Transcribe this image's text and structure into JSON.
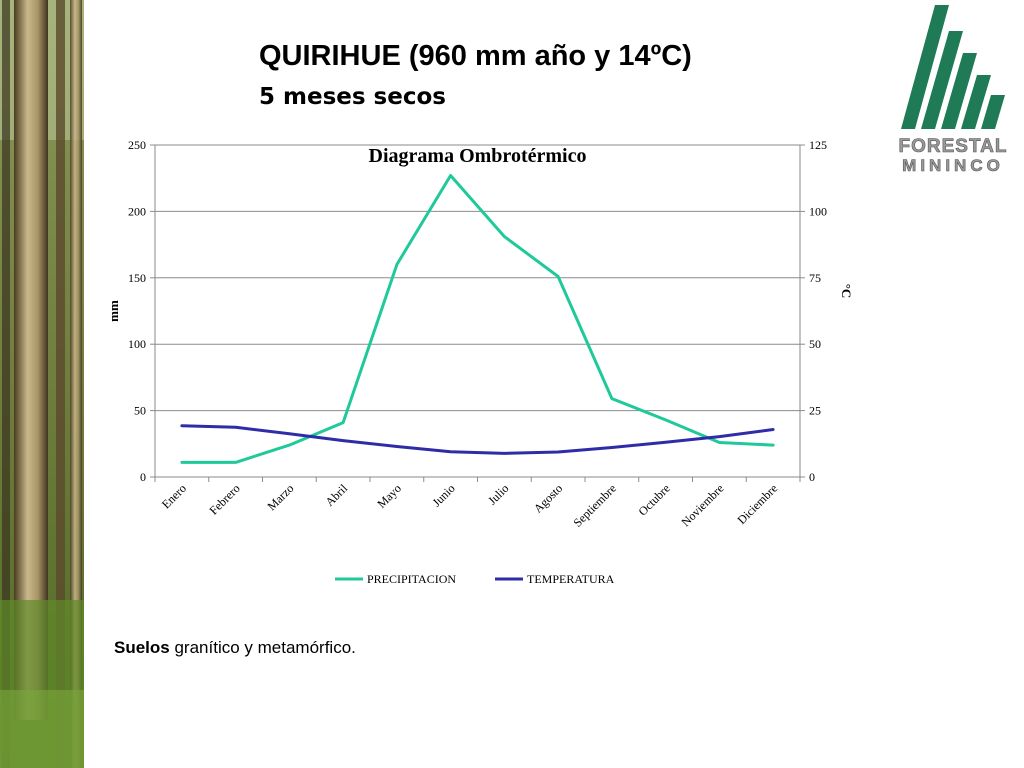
{
  "slide": {
    "title_line1": "QUIRIHUE (960 mm año y 14ºC)",
    "title_line2": "5 meses secos",
    "footer_bold": "Suelos",
    "footer_text": " granítico y metamórfico."
  },
  "logo": {
    "line1": "FORESTAL",
    "line2": "MININCO",
    "color": "#1f7a56"
  },
  "chart_data": {
    "type": "line",
    "title": "Diagrama Ombrotérmico",
    "categories": [
      "Enero",
      "Febrero",
      "Marzo",
      "Abril",
      "Mayo",
      "Junio",
      "Julio",
      "Agosto",
      "Septiembre",
      "Octubre",
      "Noviembre",
      "Diciembre"
    ],
    "series": [
      {
        "name": "PRECIPITACION",
        "axis": "left",
        "color": "#1fc99a",
        "values": [
          11,
          11,
          24,
          41,
          160,
          227,
          181,
          151,
          59,
          43,
          26,
          24
        ]
      },
      {
        "name": "TEMPERATURA",
        "axis": "right",
        "color": "#2e2ca6",
        "values": [
          19.3,
          18.7,
          16.3,
          13.7,
          11.5,
          9.5,
          8.9,
          9.4,
          11.1,
          13.1,
          15.2,
          17.9
        ]
      }
    ],
    "ylabel": "mm",
    "ylabel_right": "°C",
    "ylim": [
      0,
      250
    ],
    "ylim_right": [
      0,
      125
    ],
    "yticks": [
      "0",
      "50",
      "100",
      "150",
      "200",
      "250"
    ],
    "yticks_right": [
      "0",
      "25",
      "50",
      "75",
      "100",
      "125"
    ],
    "grid": true,
    "legend_position": "bottom"
  }
}
